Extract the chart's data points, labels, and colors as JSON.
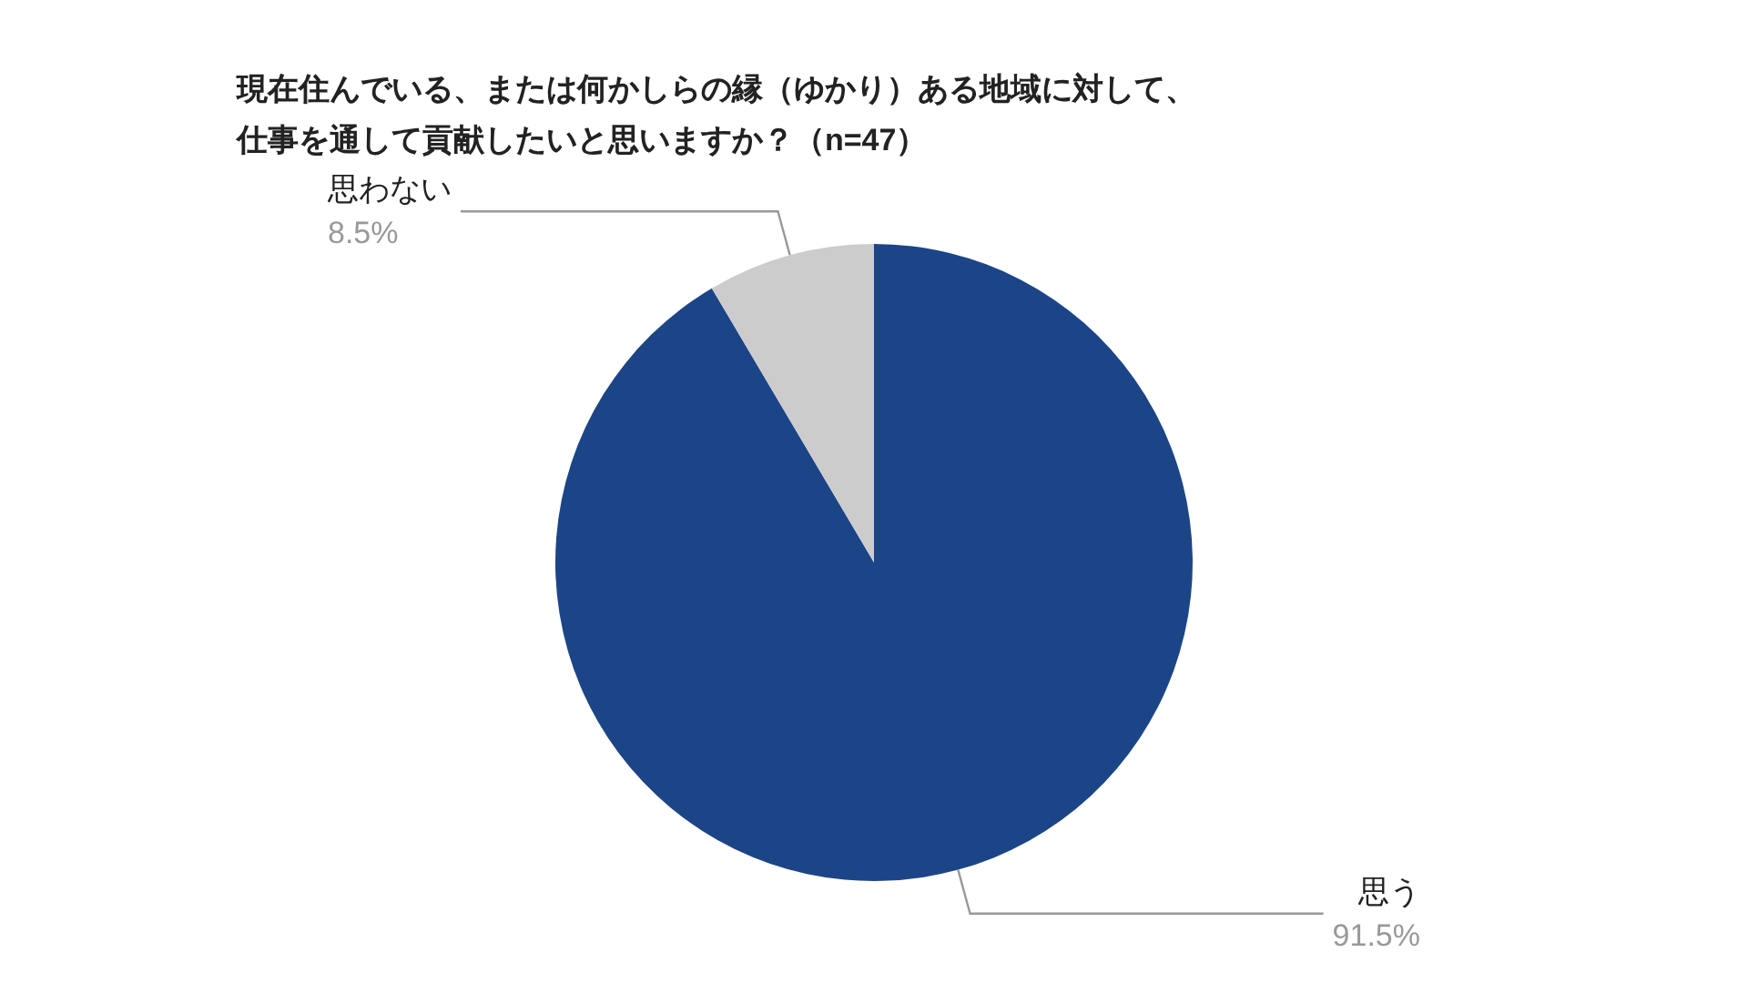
{
  "chart_data": {
    "type": "pie",
    "title": "現在住んでいる、または何かしらの縁（ゆかり）ある地域に対して、仕事を通して貢献したいと思いますか？（n=47）",
    "categories": [
      "思う",
      "思わない"
    ],
    "values": [
      91.5,
      8.5
    ],
    "colors": [
      "#1c4587",
      "#cccccc"
    ],
    "value_labels": [
      "91.5%",
      "8.5%"
    ],
    "legend": false
  }
}
